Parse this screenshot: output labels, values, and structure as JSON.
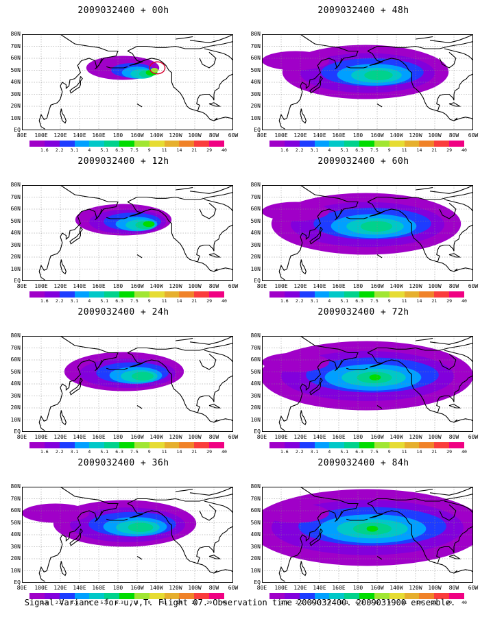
{
  "panels": [
    {
      "title": "2009032400 + 00h",
      "level": 0
    },
    {
      "title": "2009032400 + 48h",
      "level": 4
    },
    {
      "title": "2009032400 + 12h",
      "level": 1
    },
    {
      "title": "2009032400 + 60h",
      "level": 5
    },
    {
      "title": "2009032400 + 24h",
      "level": 2
    },
    {
      "title": "2009032400 + 72h",
      "level": 6
    },
    {
      "title": "2009032400 + 36h",
      "level": 3
    },
    {
      "title": "2009032400 + 84h",
      "level": 7
    }
  ],
  "lat_labels": [
    "80N",
    "70N",
    "60N",
    "50N",
    "40N",
    "30N",
    "20N",
    "10N",
    "EQ"
  ],
  "lon_labels": [
    "80E",
    "100E",
    "120E",
    "140E",
    "160E",
    "180",
    "160W",
    "140W",
    "120W",
    "100W",
    "80W",
    "60W"
  ],
  "colorbar": {
    "labels": [
      "1.6",
      "2.2",
      "3.1",
      "4",
      "5.1",
      "6.3",
      "7.5",
      "9",
      "11",
      "14",
      "21",
      "29",
      "40"
    ],
    "colors": [
      "#a000c8",
      "#8200dc",
      "#1e3cff",
      "#00a0ff",
      "#00c8c8",
      "#00d28c",
      "#00dc00",
      "#a0e632",
      "#e6dc32",
      "#e6af2d",
      "#f08228",
      "#fa3c3c",
      "#f00082"
    ]
  },
  "caption": "Signal Variance for u,v,T. Flight 07. Observation time 2009032400. 2009031900 ensemble."
}
